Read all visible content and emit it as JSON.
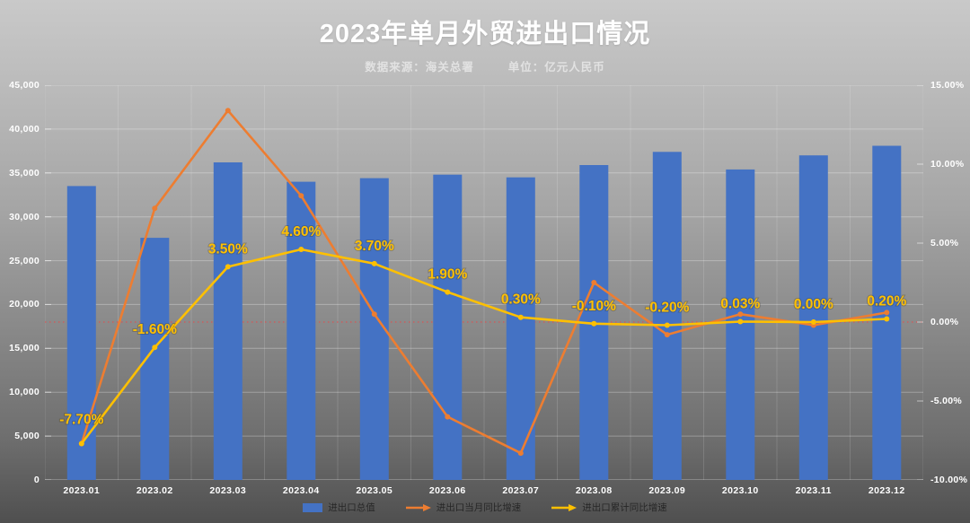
{
  "header": {
    "title": "2023年单月外贸进出口情况",
    "source_label": "数据来源：海关总署",
    "unit_label": "单位：亿元人民币"
  },
  "colors": {
    "bar_blue": "#4472C4",
    "line_orange": "#ED7D31",
    "line_yellow": "#FFC000",
    "zero_line_red": "#E05050",
    "axis_text": "#FFFFFF",
    "legend_text": "#262626"
  },
  "chart_data": {
    "type": "bar",
    "title": "2023年单月外贸进出口情况",
    "subtitle": "数据来源：海关总署  单位：亿元人民币",
    "categories": [
      "2023.01",
      "2023.02",
      "2023.03",
      "2023.04",
      "2023.05",
      "2023.06",
      "2023.07",
      "2023.08",
      "2023.09",
      "2023.10",
      "2023.11",
      "2023.12"
    ],
    "series": [
      {
        "name": "进出口总值",
        "type": "bar",
        "axis": "left",
        "color": "#4472C4",
        "values": [
          33500,
          27600,
          36200,
          34000,
          34400,
          34800,
          34500,
          35900,
          37400,
          35400,
          37000,
          38100
        ]
      },
      {
        "name": "进出口当月同比增速",
        "type": "line",
        "axis": "right",
        "color": "#ED7D31",
        "values": [
          -7.7,
          7.2,
          13.4,
          8.0,
          0.5,
          -6.0,
          -8.3,
          2.5,
          -0.8,
          0.5,
          -0.2,
          0.6
        ]
      },
      {
        "name": "进出口累计同比增速",
        "type": "line",
        "axis": "right",
        "color": "#FFC000",
        "values": [
          -7.7,
          -1.6,
          3.5,
          4.6,
          3.7,
          1.9,
          0.3,
          -0.1,
          -0.2,
          0.03,
          0.0,
          0.2
        ],
        "labels": [
          "-7.70%",
          "-1.60%",
          "3.50%",
          "4.60%",
          "3.70%",
          "1.90%",
          "0.30%",
          "-0.10%",
          "-0.20%",
          "0.03%",
          "0.00%",
          "0.20%"
        ]
      }
    ],
    "left_axis": {
      "min": 0,
      "max": 45000,
      "step": 5000,
      "tick_labels": [
        "45,000",
        "40,000",
        "35,000",
        "30,000",
        "25,000",
        "20,000",
        "15,000",
        "10,000",
        "5,000",
        "0"
      ]
    },
    "right_axis": {
      "min": -10,
      "max": 15,
      "step": 5,
      "tick_labels": [
        "15.00%",
        "10.00%",
        "5.00%",
        "0.00%",
        "-5.00%",
        "-10.00%"
      ]
    },
    "zero_reference_line": 0,
    "grid": true,
    "legend_position": "bottom"
  }
}
